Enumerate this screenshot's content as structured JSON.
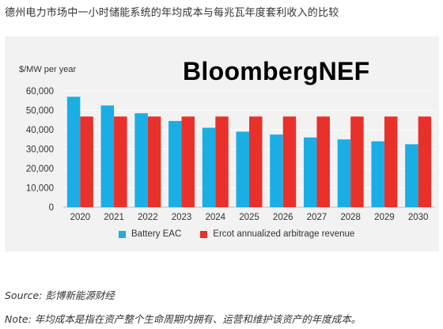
{
  "caption": {
    "title": "德州电力市场中一小时储能系统的年均成本与每兆瓦年度套利收入的比较",
    "source": "Source: 彭博新能源财经",
    "note": "Note: 年均成本是指在资产整个生命周期内拥有、运营和维护该资产的年度成本。"
  },
  "brand": "BloombergNEF",
  "colors": {
    "battery": "#1aaee5",
    "ercot": "#e8312a",
    "panel": "#f2f2f2",
    "grid": "#ffffff"
  },
  "chart_data": {
    "type": "bar",
    "title": "",
    "xlabel": "",
    "ylabel": "$/MW per year",
    "ylim": [
      0,
      60000
    ],
    "yticks": [
      "0",
      "10,000",
      "20,000",
      "30,000",
      "40,000",
      "50,000",
      "60,000"
    ],
    "categories": [
      "2020",
      "2021",
      "2022",
      "2023",
      "2024",
      "2025",
      "2026",
      "2027",
      "2028",
      "2029",
      "2030"
    ],
    "series": [
      {
        "name": "Battery EAC",
        "values": [
          57000,
          52500,
          48500,
          44500,
          41000,
          39000,
          37500,
          36000,
          35000,
          34000,
          32500
        ]
      },
      {
        "name": "Ercot annualized arbitrage revenue",
        "values": [
          46800,
          46800,
          46800,
          46800,
          46800,
          46800,
          46800,
          46800,
          46800,
          46800,
          46800
        ]
      }
    ],
    "grid": true,
    "legend": "bottom"
  }
}
